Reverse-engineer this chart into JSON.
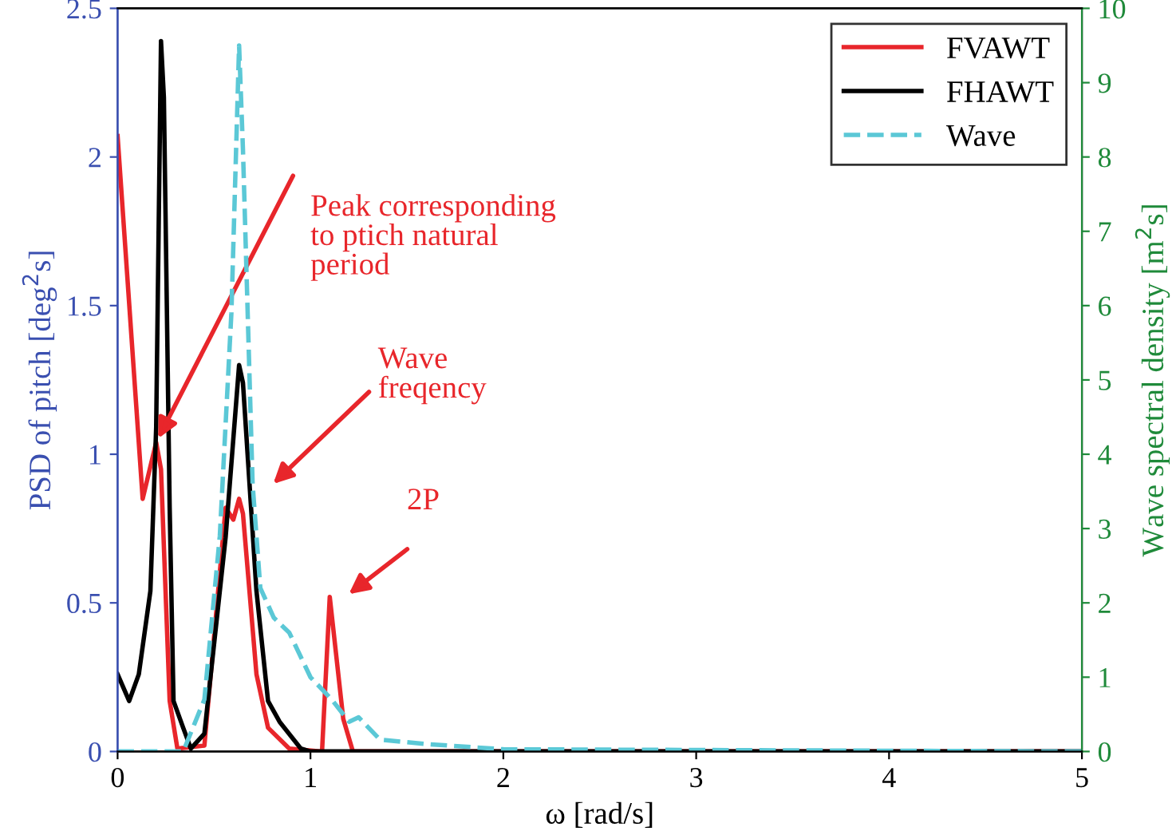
{
  "chart_data": {
    "type": "line",
    "xlabel": "ω [rad/s]",
    "ylabel": "PSD of pitch [deg$^{2}$s]",
    "y2label": "Wave spectral density [m$^{2}$s]",
    "xlim": [
      0,
      5
    ],
    "xticks": [
      0,
      1,
      2,
      3,
      4,
      5
    ],
    "ylim": [
      0,
      2.5
    ],
    "yticks": [
      0,
      0.5,
      1,
      1.5,
      2,
      2.5
    ],
    "y2lim": [
      0,
      10
    ],
    "y2ticks": [
      0,
      1,
      2,
      3,
      4,
      5,
      6,
      7,
      8,
      9,
      10
    ],
    "legend": "top right",
    "grid": false,
    "series": [
      {
        "name": "FVAWT",
        "color": "#e8262b",
        "line_style": "solid",
        "x": [
          0,
          0.13,
          0.2,
          0.225,
          0.27,
          0.31,
          0.45,
          0.56,
          0.6,
          0.63,
          0.65,
          0.72,
          0.78,
          0.89,
          1.06,
          1.1,
          1.17,
          1.22,
          5
        ],
        "values": [
          2.07,
          0.85,
          1.04,
          0.95,
          0.17,
          0.01,
          0.02,
          0.82,
          0.78,
          0.85,
          0.8,
          0.26,
          0.08,
          0.01,
          0,
          0.52,
          0.11,
          0,
          0
        ]
      },
      {
        "name": "FHAWT",
        "color": "#000000",
        "line_style": "solid",
        "x": [
          0,
          0.06,
          0.11,
          0.17,
          0.2,
          0.225,
          0.24,
          0.27,
          0.29,
          0.34,
          0.38,
          0.45,
          0.56,
          0.63,
          0.65,
          0.72,
          0.78,
          0.84,
          0.95,
          1.0,
          5
        ],
        "values": [
          0.26,
          0.17,
          0.26,
          0.54,
          1.09,
          2.39,
          2.2,
          0.82,
          0.17,
          0.08,
          0.01,
          0.06,
          0.72,
          1.3,
          1.24,
          0.54,
          0.17,
          0.1,
          0.01,
          0,
          0
        ]
      },
      {
        "name": "Wave",
        "color": "#5bc8d6",
        "line_style": "dashed",
        "axis": "y2",
        "x": [
          0,
          0.34,
          0.45,
          0.53,
          0.59,
          0.63,
          0.65,
          0.7,
          0.74,
          0.81,
          0.89,
          1.0,
          1.11,
          1.2,
          1.25,
          1.36,
          1.6,
          2.0,
          5
        ],
        "values": [
          0,
          0,
          0.7,
          2.9,
          5.9,
          9.5,
          8.1,
          3.6,
          2.2,
          1.8,
          1.6,
          1.0,
          0.7,
          0.4,
          0.46,
          0.16,
          0.1,
          0.03,
          0
        ]
      }
    ],
    "annotations": [
      {
        "text": "Peak corresponding\nto ptich natural\nperiod",
        "x": 0.2,
        "y": 1.04
      },
      "Wave\nfreqency",
      "2P"
    ]
  }
}
